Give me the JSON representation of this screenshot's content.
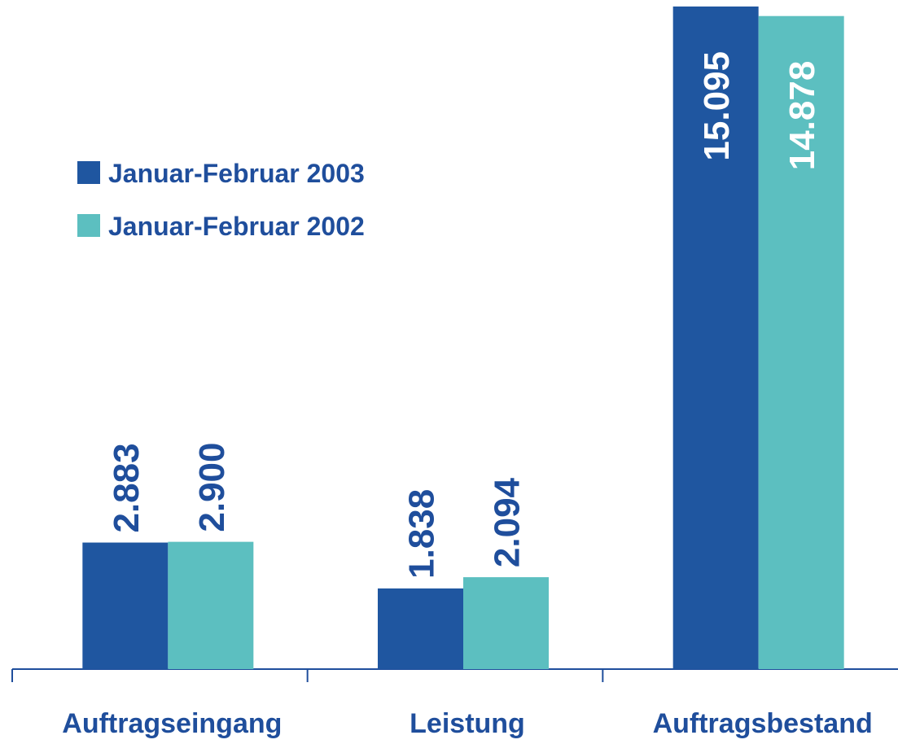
{
  "chart_data": {
    "type": "bar",
    "categories": [
      "Auftragseingang",
      "Leistung",
      "Auftragsbestand"
    ],
    "series": [
      {
        "name": "Januar-Februar 2003",
        "color": "#1f56a0",
        "values": [
          2883,
          1838,
          15095
        ],
        "value_labels": [
          "2.883",
          "1.838",
          "15.095"
        ]
      },
      {
        "name": "Januar-Februar 2002",
        "color": "#5cbfc0",
        "values": [
          2900,
          2094,
          14878
        ],
        "value_labels": [
          "2.900",
          "2.094",
          "14.878"
        ]
      }
    ],
    "legend": "upper left"
  }
}
